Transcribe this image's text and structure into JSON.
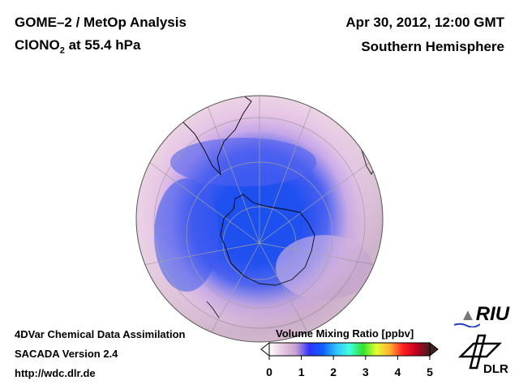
{
  "header": {
    "title_line1": "GOME–2 / MetOp Analysis",
    "species": "ClONO",
    "species_sub": "2",
    "level": " at 55.4 hPa",
    "datetime": "Apr 30, 2012, 12:00 GMT",
    "region": "Southern Hemisphere"
  },
  "footer": {
    "line1": "4DVar Chemical Data Assimilation",
    "line2": "SACADA Version 2.4",
    "line3": "http://wdc.dlr.de"
  },
  "colorbar": {
    "title": "Volume Mixing Ratio [ppbv]",
    "ticks": [
      "0",
      "1",
      "2",
      "3",
      "4",
      "5"
    ],
    "min": 0,
    "max": 5,
    "colors": [
      "#ffffff",
      "#e8c8e0",
      "#c8a0d0",
      "#3030ff",
      "#1060ff",
      "#30c0ff",
      "#40ffe0",
      "#30e030",
      "#e0ff30",
      "#ffb030",
      "#ff2020",
      "#c00020",
      "#402020"
    ]
  },
  "logos": {
    "riu": "RIU",
    "dlr": "DLR"
  }
}
